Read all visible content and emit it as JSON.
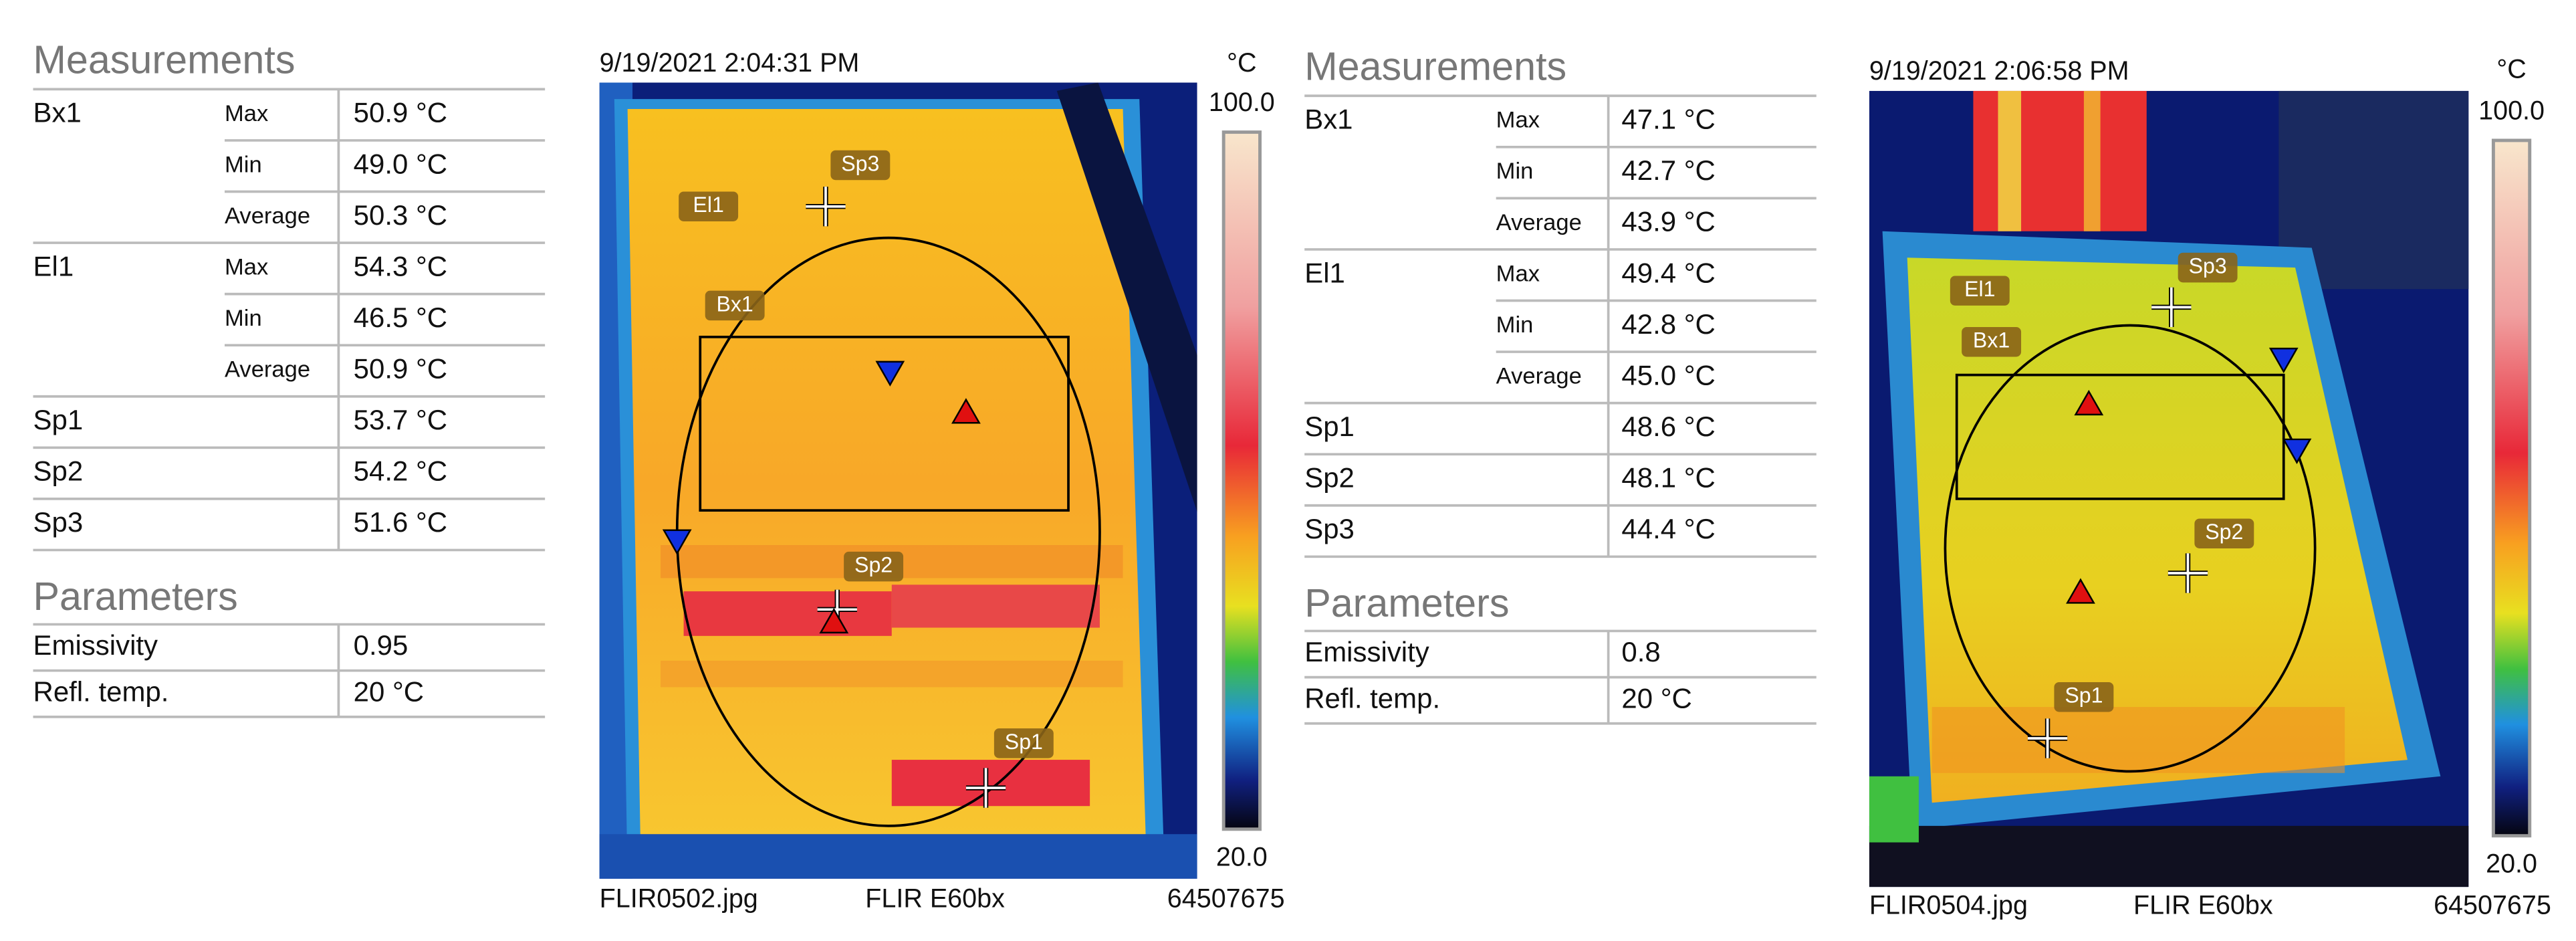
{
  "reports": [
    {
      "measurements_title": "Measurements",
      "measurements": [
        {
          "name": "Bx1",
          "stat": "Max",
          "value": "50.9 °C"
        },
        {
          "stat": "Min",
          "value": "49.0 °C"
        },
        {
          "stat": "Average",
          "value": "50.3 °C"
        },
        {
          "name": "El1",
          "stat": "Max",
          "value": "54.3 °C"
        },
        {
          "stat": "Min",
          "value": "46.5 °C"
        },
        {
          "stat": "Average",
          "value": "50.9 °C"
        },
        {
          "name": "Sp1",
          "value": "53.7 °C"
        },
        {
          "name": "Sp2",
          "value": "54.2 °C"
        },
        {
          "name": "Sp3",
          "value": "51.6 °C"
        }
      ],
      "parameters_title": "Parameters",
      "parameters": [
        {
          "name": "Emissivity",
          "value": "0.95"
        },
        {
          "name": "Refl. temp.",
          "value": "20 °C"
        }
      ],
      "timestamp": "9/19/2021 2:04:31 PM",
      "unit": "°C",
      "scale_max": "100.0",
      "scale_min": "20.0",
      "overlay_labels": [
        "El1",
        "Sp3",
        "Bx1",
        "Sp2",
        "Sp1"
      ],
      "filename": "FLIR0502.jpg",
      "camera": "FLIR E60bx",
      "serial": "64507675"
    },
    {
      "measurements_title": "Measurements",
      "measurements": [
        {
          "name": "Bx1",
          "stat": "Max",
          "value": "47.1 °C"
        },
        {
          "stat": "Min",
          "value": "42.7 °C"
        },
        {
          "stat": "Average",
          "value": "43.9 °C"
        },
        {
          "name": "El1",
          "stat": "Max",
          "value": "49.4 °C"
        },
        {
          "stat": "Min",
          "value": "42.8 °C"
        },
        {
          "stat": "Average",
          "value": "45.0 °C"
        },
        {
          "name": "Sp1",
          "value": "48.6 °C"
        },
        {
          "name": "Sp2",
          "value": "48.1 °C"
        },
        {
          "name": "Sp3",
          "value": "44.4 °C"
        }
      ],
      "parameters_title": "Parameters",
      "parameters": [
        {
          "name": "Emissivity",
          "value": "0.8"
        },
        {
          "name": "Refl. temp.",
          "value": "20 °C"
        }
      ],
      "timestamp": "9/19/2021 2:06:58 PM",
      "unit": "°C",
      "scale_max": "100.0",
      "scale_min": "20.0",
      "overlay_labels": [
        "El1",
        "Bx1",
        "Sp3",
        "Sp2",
        "Sp1"
      ],
      "filename": "FLIR0504.jpg",
      "camera": "FLIR E60bx",
      "serial": "64507675"
    }
  ]
}
